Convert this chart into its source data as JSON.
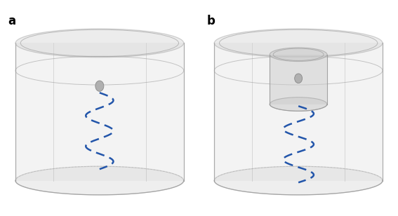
{
  "background_color": "#ffffff",
  "label_a": "a",
  "label_b": "b",
  "label_fontsize": 12,
  "label_fontweight": "bold",
  "cyl_face_color": "#d4d4d4",
  "cyl_edge_color": "#999999",
  "cyl_alpha": 0.35,
  "cyl_lw": 0.9,
  "inner_cyl_face_color": "#cccccc",
  "inner_cyl_edge_color": "#999999",
  "inner_cyl_alpha": 0.5,
  "sphere_color": "#b0b0b0",
  "sphere_edge_color": "#888888",
  "zigzag_color": "#2255aa",
  "zigzag_linewidth": 1.8,
  "zigzag_dash_on": 5,
  "zigzag_dash_off": 3
}
